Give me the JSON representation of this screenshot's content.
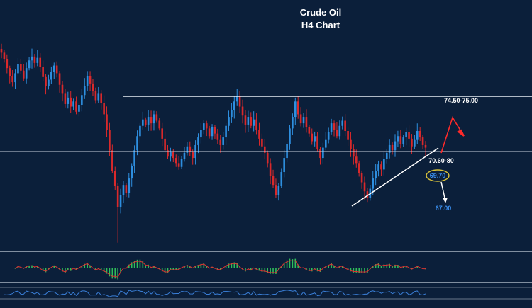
{
  "chart_data": {
    "type": "candlestick",
    "title": "Crude Oil",
    "subtitle": "H4 Chart",
    "colors": {
      "background": "#0b1f3a",
      "up": "#2e8fe0",
      "down": "#d9292b",
      "line": "#e8eef5",
      "target_up": "#ff2a2a",
      "target_down": "#ffffff",
      "label_blue": "#3a8ff0",
      "ellipse": "#d8c23a",
      "macd_hist": "#2fbf5a",
      "macd_signal": "#e03030",
      "rsi": "#3a7fd8"
    },
    "levels": [
      {
        "name": "resistance",
        "label": "74.50-75.00",
        "value": 75.0
      },
      {
        "name": "pivot",
        "label": "70.60-80",
        "value": 70.7
      }
    ],
    "annotations": [
      {
        "name": "circled-level",
        "label": "69.70",
        "value": 69.7
      },
      {
        "name": "downside-target",
        "label": "67.00",
        "value": 67.0
      }
    ],
    "closes": [
      78.4,
      77.9,
      77.2,
      76.6,
      76.1,
      76.8,
      77.5,
      77.0,
      76.4,
      77.2,
      77.8,
      78.1,
      77.6,
      78.0,
      77.3,
      76.5,
      75.8,
      76.3,
      76.9,
      77.4,
      76.8,
      75.9,
      75.2,
      74.4,
      74.9,
      74.2,
      74.6,
      73.8,
      74.3,
      75.1,
      75.8,
      76.6,
      76.0,
      75.4,
      74.7,
      75.2,
      74.5,
      73.6,
      72.4,
      70.8,
      69.2,
      68.0,
      66.4,
      67.3,
      68.1,
      67.5,
      68.6,
      69.6,
      70.8,
      71.9,
      72.7,
      73.2,
      72.8,
      73.4,
      72.9,
      73.6,
      73.1,
      72.5,
      71.7,
      70.8,
      70.3,
      70.7,
      70.2,
      69.8,
      69.5,
      70.1,
      70.6,
      71.1,
      70.7,
      70.2,
      71.2,
      71.8,
      72.4,
      72.9,
      72.5,
      71.9,
      72.6,
      72.1,
      71.6,
      71.2,
      71.8,
      72.7,
      73.4,
      73.9,
      74.6,
      75.0,
      74.2,
      73.5,
      72.8,
      73.4,
      72.7,
      73.2,
      72.4,
      71.7,
      71.1,
      70.6,
      69.8,
      68.8,
      68.1,
      67.3,
      68.0,
      69.1,
      70.2,
      71.3,
      72.5,
      73.4,
      74.6,
      73.6,
      72.9,
      73.4,
      72.6,
      72.1,
      71.5,
      71.9,
      70.9,
      70.2,
      71.0,
      71.6,
      72.2,
      72.9,
      72.4,
      71.9,
      72.7,
      73.1,
      72.3,
      71.6,
      70.9,
      70.3,
      69.8,
      69.0,
      68.3,
      67.6,
      67.1,
      67.8,
      68.6,
      69.2,
      69.7,
      69.3,
      70.1,
      70.6,
      71.2,
      70.8,
      71.5,
      71.9,
      71.3,
      71.8,
      72.2,
      71.7,
      71.1,
      71.6,
      72.3,
      71.8,
      71.2,
      71.0
    ],
    "ylim": [
      63.2,
      81.4
    ]
  }
}
